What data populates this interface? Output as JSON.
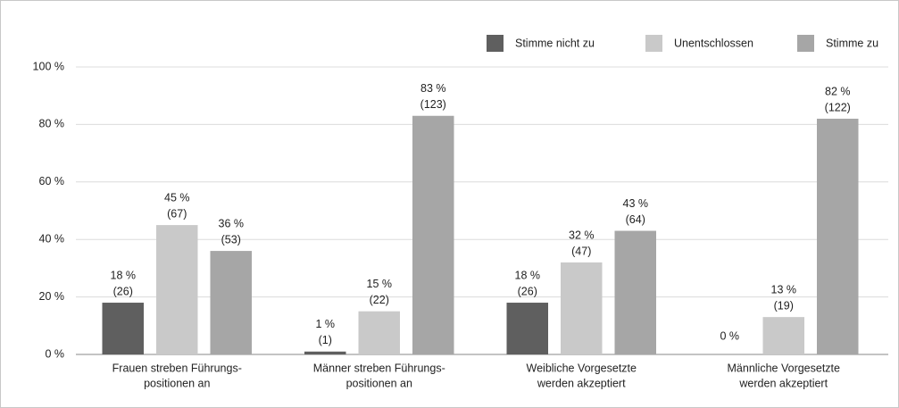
{
  "chart_data": {
    "type": "bar",
    "categories": [
      [
        "Frauen streben Führungs-",
        "positionen an"
      ],
      [
        "Männer streben Führungs-",
        "positionen an"
      ],
      [
        "Weibliche Vorgesetzte",
        "werden akzeptiert"
      ],
      [
        "Männliche Vorgesetzte",
        "werden akzeptiert"
      ]
    ],
    "series": [
      {
        "name": "Stimme nicht zu",
        "color": "#5f5f5f",
        "values": [
          18,
          1,
          18,
          0
        ],
        "value_labels": [
          "18 %",
          "1 %",
          "18 %",
          "0 %"
        ],
        "count_labels": [
          "(26)",
          "(1)",
          "(26)",
          null
        ]
      },
      {
        "name": "Unentschlossen",
        "color": "#c9c9c9",
        "values": [
          45,
          15,
          32,
          13
        ],
        "value_labels": [
          "45 %",
          "15 %",
          "32 %",
          "13 %"
        ],
        "count_labels": [
          "(67)",
          "(22)",
          "(47)",
          "(19)"
        ]
      },
      {
        "name": "Stimme zu",
        "color": "#a6a6a6",
        "values": [
          36,
          83,
          43,
          82
        ],
        "value_labels": [
          "36 %",
          "83 %",
          "43 %",
          "82 %"
        ],
        "count_labels": [
          "(53)",
          "(123)",
          "(64)",
          "(122)"
        ]
      }
    ],
    "ylim": [
      0,
      100
    ],
    "yticks": [
      {
        "value": 0,
        "label": "0 %"
      },
      {
        "value": 20,
        "label": "20 %"
      },
      {
        "value": 40,
        "label": "40 %"
      },
      {
        "value": 60,
        "label": "60 %"
      },
      {
        "value": 80,
        "label": "80 %"
      },
      {
        "value": 100,
        "label": "100 %"
      }
    ],
    "grid": true,
    "legend": "top-right"
  }
}
